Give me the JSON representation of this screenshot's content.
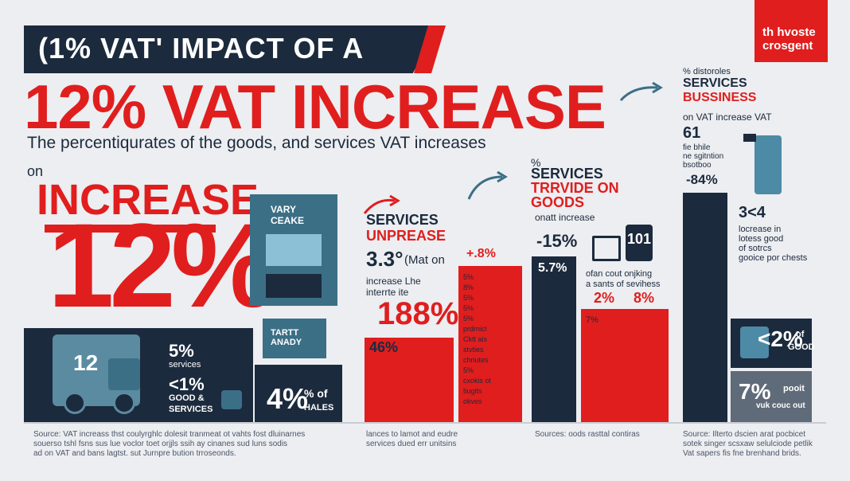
{
  "header": {
    "banner_title": "(1% VAT' IMPACT OF A",
    "headline": "12% VAT INCREASE",
    "subtitle": "The percentiqurates of the goods, and services VAT increases",
    "brand_line1": "th hvoste",
    "brand_line2": "crosgent"
  },
  "left": {
    "on_label": "on",
    "increase_label": "INCREASE",
    "big_percent": "12%",
    "truck_number": "12",
    "stat1_value": "5%",
    "stat1_label": "services",
    "stat2_value": "<1%",
    "stat2_label1": "GOOD &",
    "stat2_label2": "SERVICES",
    "building_sign1": "VARY",
    "building_sign2": "CEAKE",
    "market_sign1": "TARTT",
    "market_sign2": "ANADY",
    "stat3_value": "4%",
    "stat3_suffix": "% of",
    "stat3_label": "HALES"
  },
  "middle": {
    "title1": "SERVICES",
    "title2": "UNPREASE",
    "value_main": "3.3°",
    "value_main_suffix": "(Mat on",
    "desc1": "increase Lhe",
    "desc2": "interrte ite",
    "big_value": "188%",
    "bar_left_value": "46%",
    "bar_right_value": "+.8%",
    "bar_right_notes": [
      "5%",
      "8%",
      "5%",
      "5%",
      "5%",
      "prdrnicl",
      "Cktt ais",
      "stvties",
      "chriutes",
      "5%",
      "cxokis ot",
      "tiugits",
      "okves"
    ]
  },
  "right_middle": {
    "pct_symbol": "%",
    "title1": "SERVICES",
    "title2": "TRRVIDE ON",
    "title3": "GOODS",
    "subtitle": "onatt increase",
    "value_a": "-15%",
    "value_b": "5.7%",
    "badge": "101",
    "desc1": "ofan cout onjking",
    "desc2": "a sants of sevihess",
    "value_c": "2%",
    "value_d": "8%",
    "value_e": "7%"
  },
  "right": {
    "title_small": "% distoroles",
    "title1": "SERVICES",
    "title2": "BUSSINESS",
    "desc1": "on VAT increase VAT",
    "value1": "61",
    "desc2a": "fie bhile",
    "desc2b": "ne sgitntion",
    "desc2c": "bsotboo",
    "value2": "-84%",
    "value3": "3<4",
    "desc3a": "locrease in",
    "desc3b": "lotess good",
    "desc3c": "of sotrcs",
    "desc3d": "gooice por chests",
    "panel1_value": "<2%",
    "panel1_label1": "of",
    "panel1_label2": "GOOD",
    "panel2_value": "7%",
    "panel2_label1": "pooit",
    "panel2_label2": "vuk couc out"
  },
  "footer": {
    "source1a": "Source: VAT increass thst coulyrghlc dolesit tranmeat ot vahts fost dluinarnes",
    "source1b": "souerso tshl fsns sus lue voclor toet orjjls ssih ay cinanes sud luns sodis",
    "source1c": "ad on VAT and bans lagtst. sut Jurnpre bution trroseonds.",
    "source2a": "lances to lamot and eudre",
    "source2b": "services dued err unitsins",
    "source3": "Sources: oods rasttal contiras",
    "source4a": "Source: Ilterto dscien arat pocbicet",
    "source4b": "sotek singer scsxaw selulciode petlik",
    "source4c": "Vat sapers fis fne brenhand brids."
  }
}
